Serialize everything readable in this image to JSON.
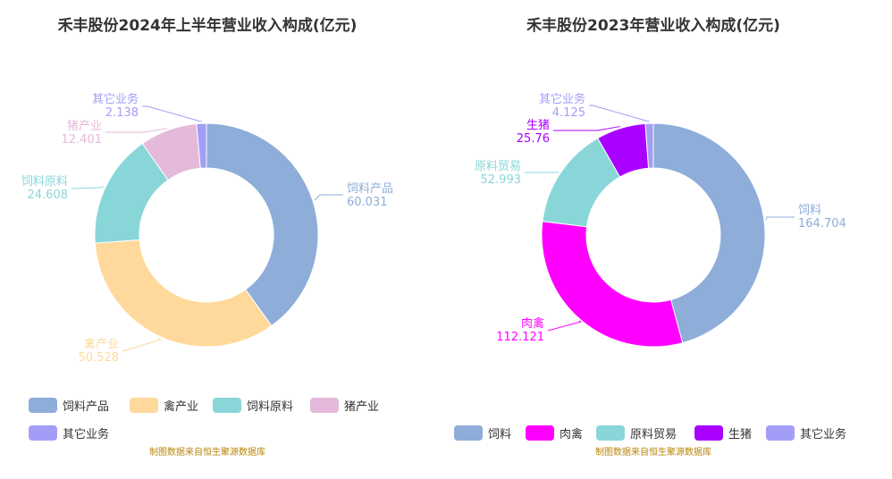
{
  "source_note": "制图数据来自恒生聚源数据库",
  "chart_data": [
    {
      "type": "pie",
      "title": "禾丰股份2024年上半年营业收入构成(亿元)",
      "categories": [
        "饲料产品",
        "禽产业",
        "饲料原料",
        "猪产业",
        "其它业务"
      ],
      "values": [
        60.031,
        50.528,
        24.608,
        12.401,
        2.138
      ],
      "value_labels": [
        "60.031",
        "50.528",
        "24.608",
        "12.401",
        "2.138"
      ],
      "colors": [
        "#8eadd9",
        "#ffd99b",
        "#89d6d9",
        "#e5b9da",
        "#a29ef7"
      ],
      "donut": true,
      "legend_position": "bottom"
    },
    {
      "type": "pie",
      "title": "禾丰股份2023年营业收入构成(亿元)",
      "categories": [
        "饲料",
        "肉禽",
        "原料贸易",
        "生猪",
        "其它业务"
      ],
      "values": [
        164.704,
        112.121,
        52.993,
        25.76,
        4.125
      ],
      "value_labels": [
        "164.704",
        "112.121",
        "52.993",
        "25.76",
        "4.125"
      ],
      "colors": [
        "#8eadd9",
        "#ff00ff",
        "#89d6d9",
        "#aa00ff",
        "#a29ef7"
      ],
      "donut": true,
      "legend_position": "bottom"
    }
  ]
}
